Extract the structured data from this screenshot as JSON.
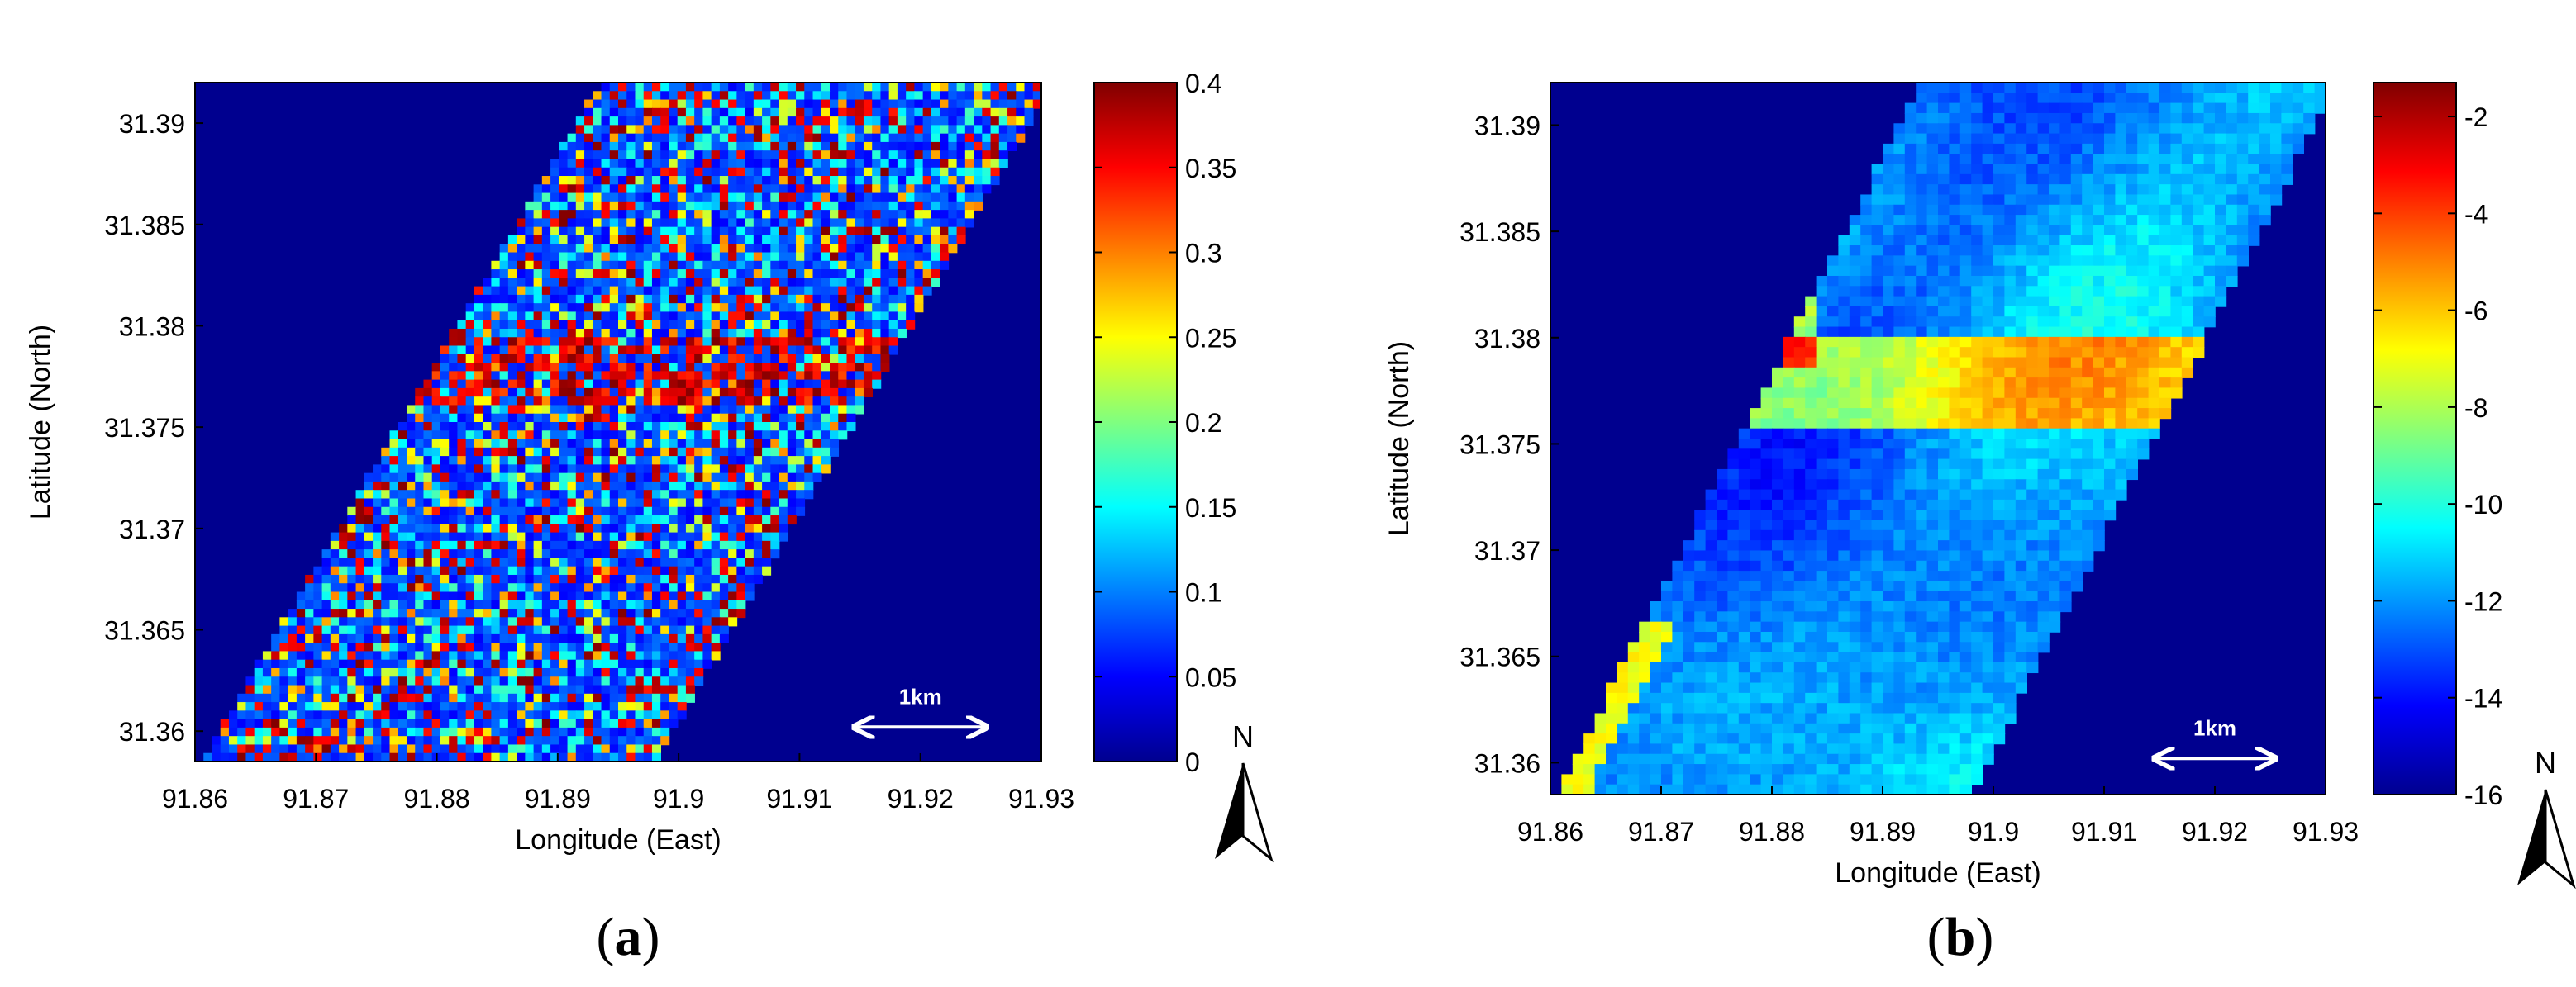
{
  "chart_data": [
    {
      "panel": "a",
      "type": "heatmap",
      "title": "",
      "xlabel": "Longitude (East)",
      "ylabel": "Latitude (North)",
      "xlim": [
        91.86,
        91.93
      ],
      "ylim": [
        31.3585,
        31.392
      ],
      "x_ticks": [
        "91.86",
        "91.87",
        "91.88",
        "91.89",
        "91.9",
        "91.91",
        "91.92",
        "91.93"
      ],
      "y_ticks": [
        "31.39",
        "31.385",
        "31.38",
        "31.375",
        "31.37",
        "31.365",
        "31.36"
      ],
      "colorbar": {
        "min": 0,
        "max": 0.4,
        "ticks": [
          "0.4",
          "0.35",
          "0.3",
          "0.25",
          "0.2",
          "0.15",
          "0.1",
          "0.05",
          "0"
        ]
      },
      "colormap": "jet",
      "swath": {
        "top_left_lon": 91.8935,
        "top_right_lon": 91.931,
        "bottom_left_lon": 91.8605,
        "bottom_right_lon": 91.898
      },
      "grid": false,
      "scale_bar": {
        "label": "1km",
        "lon_range": [
          91.9145,
          91.9255
        ],
        "lat": 31.3602
      },
      "north_label": "N",
      "caption_open": "(",
      "caption_letter": "a",
      "caption_close": ")"
    },
    {
      "panel": "b",
      "type": "heatmap",
      "title": "",
      "xlabel": "Longitude (East)",
      "ylabel": "Latitude (North)",
      "xlim": [
        91.86,
        91.93
      ],
      "ylim": [
        31.3585,
        31.392
      ],
      "x_ticks": [
        "91.86",
        "91.87",
        "91.88",
        "91.89",
        "91.9",
        "91.91",
        "91.92",
        "91.93"
      ],
      "y_ticks": [
        "31.39",
        "31.385",
        "31.38",
        "31.375",
        "31.37",
        "31.365",
        "31.36"
      ],
      "colorbar": {
        "min": -16,
        "max": -1.3,
        "ticks": [
          "-2",
          "-4",
          "-6",
          "-8",
          "-10",
          "-12",
          "-14",
          "-16"
        ]
      },
      "colormap": "jet",
      "swath": {
        "top_left_lon": 91.8935,
        "top_right_lon": 91.931,
        "bottom_left_lon": 91.8605,
        "bottom_right_lon": 91.898
      },
      "grid": false,
      "scale_bar": {
        "label": "1km",
        "lon_range": [
          91.9145,
          91.9255
        ],
        "lat": 31.3602
      },
      "north_label": "N",
      "caption_open": "(",
      "caption_letter": "b",
      "caption_close": ")"
    }
  ]
}
